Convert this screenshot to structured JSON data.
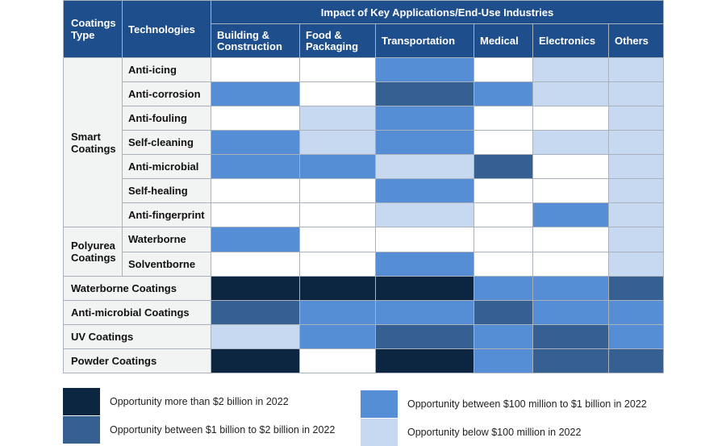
{
  "chart_data": {
    "type": "table",
    "header": {
      "type_label": "Coatings Type",
      "tech_label": "Technologies",
      "group_label": "Impact of Key Applications/End-Use Industries"
    },
    "industries": [
      "Building & Construction",
      "Food & Packaging",
      "Transportation",
      "Medical",
      "Electronics",
      "Others"
    ],
    "groups": [
      {
        "name": "Smart Coatings",
        "rows": [
          {
            "tech": "Anti-icing",
            "levels": [
              0,
              0,
              2,
              0,
              1,
              1
            ]
          },
          {
            "tech": "Anti-corrosion",
            "levels": [
              2,
              0,
              3,
              2,
              1,
              1
            ]
          },
          {
            "tech": "Anti-fouling",
            "levels": [
              0,
              1,
              2,
              0,
              0,
              1
            ]
          },
          {
            "tech": "Self-cleaning",
            "levels": [
              2,
              1,
              2,
              0,
              1,
              1
            ]
          },
          {
            "tech": "Anti-microbial",
            "levels": [
              2,
              2,
              1,
              3,
              0,
              1
            ]
          },
          {
            "tech": "Self-healing",
            "levels": [
              0,
              0,
              2,
              0,
              0,
              1
            ]
          },
          {
            "tech": "Anti-fingerprint",
            "levels": [
              0,
              0,
              1,
              0,
              2,
              1
            ]
          }
        ]
      },
      {
        "name": "Polyurea Coatings",
        "rows": [
          {
            "tech": "Waterborne",
            "levels": [
              2,
              0,
              0,
              0,
              0,
              1
            ]
          },
          {
            "tech": "Solventborne",
            "levels": [
              0,
              0,
              2,
              0,
              0,
              1
            ]
          }
        ]
      }
    ],
    "full_rows": [
      {
        "name": "Waterborne Coatings",
        "levels": [
          4,
          4,
          4,
          2,
          2,
          3
        ]
      },
      {
        "name": "Anti-microbial Coatings",
        "levels": [
          3,
          2,
          2,
          3,
          2,
          2
        ]
      },
      {
        "name": "UV Coatings",
        "levels": [
          1,
          2,
          3,
          2,
          3,
          2
        ]
      },
      {
        "name": "Powder Coatings",
        "levels": [
          4,
          0,
          4,
          2,
          3,
          3
        ]
      }
    ],
    "level_colors": [
      "#ffffff",
      "#c6d9f1",
      "#558ed5",
      "#376092",
      "#0c2641"
    ],
    "legend": [
      {
        "level": 4,
        "label": "Opportunity more than $2 billion in 2022"
      },
      {
        "level": 3,
        "label": "Opportunity between $1 billion to $2 billion in 2022"
      },
      {
        "level": 2,
        "label": "Opportunity between $100 million to $1 billion in 2022"
      },
      {
        "level": 1,
        "label": "Opportunity below $100 million in 2022"
      }
    ]
  },
  "colors": {
    "header_bg": "#1f4e8c",
    "label_bg": "#f2f3f3",
    "grid": "#a9b1bc"
  }
}
